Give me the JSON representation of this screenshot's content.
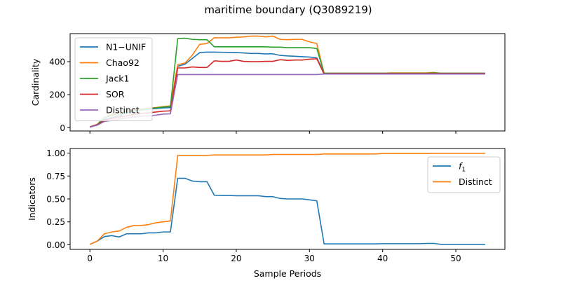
{
  "figure": {
    "title": "maritime boundary (Q3089219)"
  },
  "colors": {
    "blue": "#1f77b4",
    "orange": "#ff7f0e",
    "green": "#2ca02c",
    "red": "#d62728",
    "purple": "#9467bd"
  },
  "chart_data": [
    {
      "type": "line",
      "ylabel": "Cardinality",
      "xlabel": "",
      "xlim": [
        -2.7,
        56.7
      ],
      "ylim": [
        -20,
        570
      ],
      "xticks": [
        0,
        10,
        20,
        30,
        40,
        50
      ],
      "yticks": [
        0,
        200,
        400
      ],
      "ytick_labels": [
        "0",
        "200",
        "400"
      ],
      "legend_position": "upper-left",
      "x": [
        0,
        1,
        2,
        3,
        4,
        5,
        6,
        7,
        8,
        9,
        10,
        11,
        12,
        13,
        14,
        15,
        16,
        17,
        18,
        19,
        20,
        21,
        22,
        23,
        24,
        25,
        26,
        27,
        28,
        29,
        30,
        31,
        32,
        33,
        34,
        35,
        36,
        37,
        38,
        39,
        40,
        41,
        42,
        43,
        44,
        45,
        46,
        47,
        48,
        49,
        50,
        51,
        52,
        53,
        54
      ],
      "series": [
        {
          "name": "N1−UNIF",
          "color": "#1f77b4",
          "values": [
            5,
            18,
            52,
            62,
            72,
            88,
            98,
            106,
            112,
            116,
            120,
            122,
            372,
            385,
            420,
            455,
            458,
            458,
            457,
            456,
            455,
            453,
            450,
            450,
            447,
            448,
            438,
            435,
            433,
            430,
            428,
            423,
            330,
            330,
            330,
            330,
            330,
            330,
            330,
            330,
            330,
            330,
            330,
            330,
            330,
            330,
            330,
            330,
            330,
            330,
            330,
            330,
            330,
            330,
            330
          ]
        },
        {
          "name": "Chao92",
          "color": "#ff7f0e",
          "values": [
            5,
            20,
            62,
            82,
            90,
            100,
            108,
            113,
            118,
            122,
            128,
            132,
            382,
            392,
            440,
            505,
            510,
            545,
            545,
            545,
            548,
            550,
            555,
            555,
            550,
            555,
            535,
            533,
            535,
            535,
            520,
            510,
            330,
            330,
            330,
            330,
            330,
            330,
            330,
            330,
            330,
            332,
            332,
            332,
            332,
            332,
            332,
            335,
            330,
            330,
            330,
            330,
            330,
            330,
            330
          ]
        },
        {
          "name": "Jack1",
          "color": "#2ca02c",
          "values": [
            5,
            20,
            62,
            75,
            82,
            95,
            102,
            110,
            115,
            120,
            125,
            128,
            540,
            542,
            535,
            533,
            533,
            490,
            490,
            490,
            490,
            490,
            490,
            490,
            490,
            488,
            488,
            485,
            485,
            485,
            485,
            480,
            330,
            330,
            330,
            330,
            330,
            330,
            330,
            330,
            330,
            330,
            330,
            330,
            330,
            330,
            330,
            332,
            330,
            330,
            330,
            330,
            330,
            330,
            330
          ]
        },
        {
          "name": "SOR",
          "color": "#d62728",
          "values": [
            5,
            18,
            45,
            55,
            65,
            72,
            80,
            86,
            90,
            95,
            100,
            102,
            362,
            362,
            368,
            365,
            365,
            405,
            402,
            402,
            410,
            402,
            400,
            400,
            402,
            402,
            412,
            408,
            410,
            410,
            415,
            418,
            325,
            328,
            328,
            328,
            328,
            328,
            328,
            328,
            328,
            328,
            328,
            328,
            328,
            328,
            328,
            328,
            328,
            328,
            328,
            328,
            328,
            328,
            328
          ]
        },
        {
          "name": "Distinct",
          "color": "#9467bd",
          "values": [
            3,
            15,
            38,
            44,
            50,
            60,
            65,
            70,
            72,
            76,
            82,
            84,
            322,
            322,
            322,
            322,
            322,
            322,
            322,
            322,
            322,
            322,
            322,
            322,
            322,
            322,
            322,
            322,
            322,
            322,
            322,
            322,
            325,
            325,
            325,
            325,
            325,
            325,
            325,
            325,
            325,
            325,
            325,
            325,
            325,
            325,
            325,
            325,
            325,
            325,
            325,
            325,
            325,
            325,
            325
          ]
        }
      ]
    },
    {
      "type": "line",
      "ylabel": "Indicators",
      "xlabel": "Sample Periods",
      "xlim": [
        -2.7,
        56.7
      ],
      "ylim": [
        -0.05,
        1.05
      ],
      "xticks": [
        0,
        10,
        20,
        30,
        40,
        50
      ],
      "xtick_labels": [
        "0",
        "10",
        "20",
        "30",
        "40",
        "50"
      ],
      "yticks": [
        0.0,
        0.25,
        0.5,
        0.75,
        1.0
      ],
      "ytick_labels": [
        "0.00",
        "0.25",
        "0.50",
        "0.75",
        "1.00"
      ],
      "legend_position": "right",
      "x": [
        0,
        1,
        2,
        3,
        4,
        5,
        6,
        7,
        8,
        9,
        10,
        11,
        12,
        13,
        14,
        15,
        16,
        17,
        18,
        19,
        20,
        21,
        22,
        23,
        24,
        25,
        26,
        27,
        28,
        29,
        30,
        31,
        32,
        33,
        34,
        35,
        36,
        37,
        38,
        39,
        40,
        41,
        42,
        43,
        44,
        45,
        46,
        47,
        48,
        49,
        50,
        51,
        52,
        53,
        54
      ],
      "series": [
        {
          "name": "f",
          "name_subscript": "1",
          "color": "#1f77b4",
          "values": [
            0.005,
            0.04,
            0.09,
            0.1,
            0.085,
            0.12,
            0.12,
            0.12,
            0.13,
            0.13,
            0.14,
            0.14,
            0.725,
            0.725,
            0.695,
            0.688,
            0.688,
            0.54,
            0.538,
            0.538,
            0.535,
            0.535,
            0.535,
            0.535,
            0.525,
            0.525,
            0.505,
            0.5,
            0.5,
            0.5,
            0.49,
            0.48,
            0.01,
            0.01,
            0.01,
            0.01,
            0.01,
            0.01,
            0.01,
            0.01,
            0.012,
            0.012,
            0.012,
            0.012,
            0.012,
            0.012,
            0.015,
            0.015,
            0.005,
            0.005,
            0.005,
            0.005,
            0.005,
            0.005,
            0.005
          ]
        },
        {
          "name": "Distinct",
          "color": "#ff7f0e",
          "values": [
            0.005,
            0.04,
            0.12,
            0.14,
            0.15,
            0.19,
            0.21,
            0.21,
            0.22,
            0.24,
            0.25,
            0.26,
            0.975,
            0.975,
            0.975,
            0.975,
            0.975,
            0.98,
            0.98,
            0.98,
            0.98,
            0.98,
            0.98,
            0.98,
            0.98,
            0.985,
            0.985,
            0.985,
            0.985,
            0.985,
            0.985,
            0.985,
            0.99,
            0.99,
            0.99,
            0.99,
            0.99,
            0.99,
            0.99,
            0.99,
            0.995,
            0.995,
            0.995,
            0.995,
            0.995,
            0.995,
            0.995,
            0.998,
            0.998,
            0.998,
            0.998,
            0.998,
            0.998,
            0.998,
            0.998
          ]
        }
      ]
    }
  ]
}
